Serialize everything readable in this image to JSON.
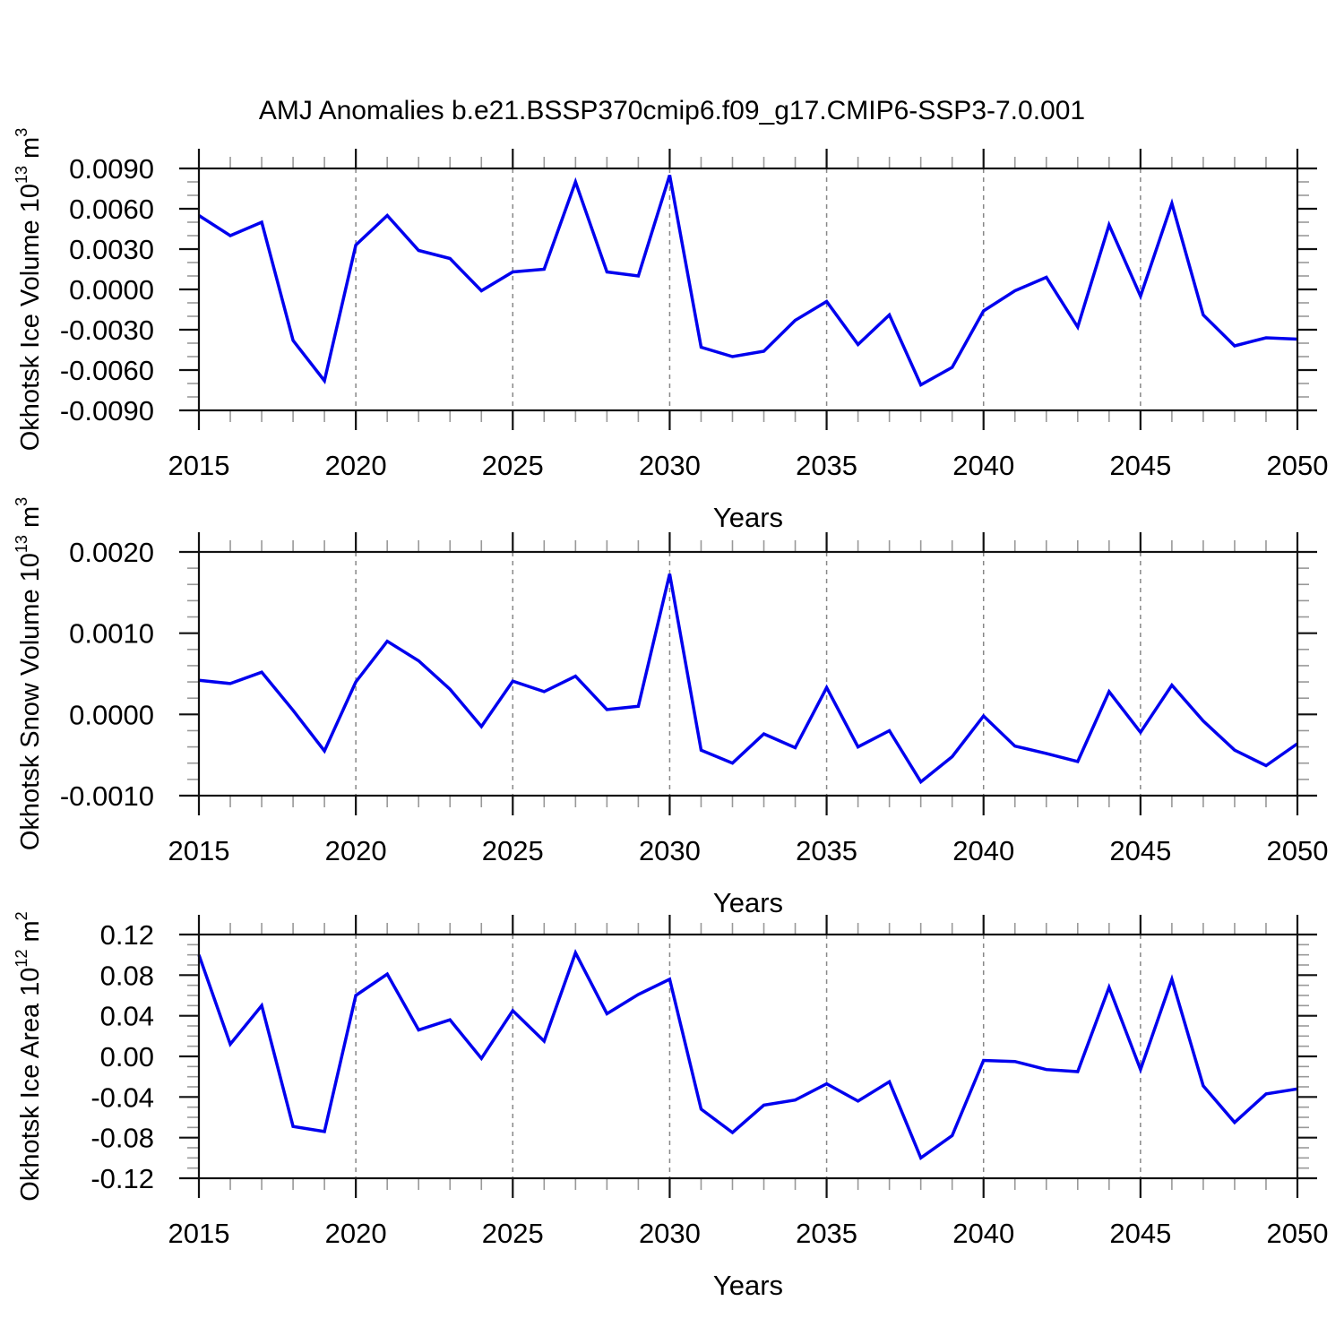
{
  "title": "AMJ Anomalies b.e21.BSSP370cmip6.f09_g17.CMIP6-SSP3-7.0.001",
  "style": {
    "line_color": "#0000EE",
    "frame_color": "#111111",
    "major_tick_color": "#111111",
    "minor_tick_color": "#999999",
    "grid_color": "#888888",
    "background": "#ffffff"
  },
  "chart_data": [
    {
      "type": "line",
      "panel": "okhotsk-ice-volume",
      "ylabel_base": "Okhotsk Ice Volume 10",
      "ylabel_exp": "13",
      "ylabel_unit": " m",
      "ylabel_unit_exp": "3",
      "xlabel": "Years",
      "x_start": 2015,
      "x_end": 2050,
      "x_step": 1,
      "ylim": [
        -0.009,
        0.009
      ],
      "ytick_minor_step": 0.001,
      "yticks": [
        {
          "v": 0.009,
          "label": "0.0090"
        },
        {
          "v": 0.006,
          "label": "0.0060"
        },
        {
          "v": 0.003,
          "label": "0.0030"
        },
        {
          "v": 0.0,
          "label": "0.0000"
        },
        {
          "v": -0.003,
          "label": "-0.0030"
        },
        {
          "v": -0.006,
          "label": "-0.0060"
        },
        {
          "v": -0.009,
          "label": "-0.0090"
        }
      ],
      "xticks": [
        {
          "v": 2015,
          "label": "2015",
          "grid": false
        },
        {
          "v": 2020,
          "label": "2020",
          "grid": true
        },
        {
          "v": 2025,
          "label": "2025",
          "grid": true
        },
        {
          "v": 2030,
          "label": "2030",
          "grid": true
        },
        {
          "v": 2035,
          "label": "2035",
          "grid": true
        },
        {
          "v": 2040,
          "label": "2040",
          "grid": true
        },
        {
          "v": 2045,
          "label": "2045",
          "grid": true
        },
        {
          "v": 2050,
          "label": "2050",
          "grid": false
        }
      ],
      "values": [
        0.0055,
        0.004,
        0.005,
        -0.0038,
        -0.0068,
        0.0033,
        0.0055,
        0.0029,
        0.0023,
        -0.0001,
        0.0013,
        0.0015,
        0.008,
        0.0013,
        0.001,
        0.0085,
        -0.0043,
        -0.005,
        -0.0046,
        -0.0023,
        -0.0009,
        -0.0041,
        -0.0019,
        -0.0071,
        -0.0058,
        -0.0016,
        -0.0001,
        0.0009,
        -0.0028,
        0.0048,
        -0.0005,
        0.0064,
        -0.0019,
        -0.0042,
        -0.0036,
        -0.0037
      ]
    },
    {
      "type": "line",
      "panel": "okhotsk-snow-volume",
      "ylabel_base": "Okhotsk Snow Volume 10",
      "ylabel_exp": "13",
      "ylabel_unit": " m",
      "ylabel_unit_exp": "3",
      "xlabel": "Years",
      "x_start": 2015,
      "x_end": 2050,
      "x_step": 1,
      "ylim": [
        -0.001,
        0.002
      ],
      "ytick_minor_step": 0.0002,
      "yticks": [
        {
          "v": 0.002,
          "label": "0.0020"
        },
        {
          "v": 0.001,
          "label": "0.0010"
        },
        {
          "v": 0.0,
          "label": "0.0000"
        },
        {
          "v": -0.001,
          "label": "-0.0010"
        }
      ],
      "xticks": [
        {
          "v": 2015,
          "label": "2015",
          "grid": false
        },
        {
          "v": 2020,
          "label": "2020",
          "grid": true
        },
        {
          "v": 2025,
          "label": "2025",
          "grid": true
        },
        {
          "v": 2030,
          "label": "2030",
          "grid": true
        },
        {
          "v": 2035,
          "label": "2035",
          "grid": true
        },
        {
          "v": 2040,
          "label": "2040",
          "grid": true
        },
        {
          "v": 2045,
          "label": "2045",
          "grid": true
        },
        {
          "v": 2050,
          "label": "2050",
          "grid": false
        }
      ],
      "values": [
        0.00042,
        0.00038,
        0.00052,
        5e-05,
        -0.00045,
        0.0004,
        0.0009,
        0.00066,
        0.00031,
        -0.00015,
        0.00041,
        0.00028,
        0.00047,
        6e-05,
        0.0001,
        0.00173,
        -0.00044,
        -0.0006,
        -0.00024,
        -0.00041,
        0.00033,
        -0.0004,
        -0.0002,
        -0.00083,
        -0.00052,
        -2e-05,
        -0.00039,
        -0.00048,
        -0.00058,
        0.00028,
        -0.00022,
        0.00036,
        -8e-05,
        -0.00044,
        -0.00063,
        -0.00036
      ]
    },
    {
      "type": "line",
      "panel": "okhotsk-ice-area",
      "ylabel_base": "Okhotsk Ice Area 10",
      "ylabel_exp": "12",
      "ylabel_unit": " m",
      "ylabel_unit_exp": "2",
      "xlabel": "Years",
      "x_start": 2015,
      "x_end": 2050,
      "x_step": 1,
      "ylim": [
        -0.12,
        0.12
      ],
      "ytick_minor_step": 0.01,
      "yticks": [
        {
          "v": 0.12,
          "label": "0.12"
        },
        {
          "v": 0.08,
          "label": "0.08"
        },
        {
          "v": 0.04,
          "label": "0.04"
        },
        {
          "v": 0.0,
          "label": "0.00"
        },
        {
          "v": -0.04,
          "label": "-0.04"
        },
        {
          "v": -0.08,
          "label": "-0.08"
        },
        {
          "v": -0.12,
          "label": "-0.12"
        }
      ],
      "xticks": [
        {
          "v": 2015,
          "label": "2015",
          "grid": false
        },
        {
          "v": 2020,
          "label": "2020",
          "grid": true
        },
        {
          "v": 2025,
          "label": "2025",
          "grid": true
        },
        {
          "v": 2030,
          "label": "2030",
          "grid": true
        },
        {
          "v": 2035,
          "label": "2035",
          "grid": true
        },
        {
          "v": 2040,
          "label": "2040",
          "grid": true
        },
        {
          "v": 2045,
          "label": "2045",
          "grid": true
        },
        {
          "v": 2050,
          "label": "2050",
          "grid": false
        }
      ],
      "values": [
        0.1,
        0.012,
        0.05,
        -0.069,
        -0.074,
        0.06,
        0.081,
        0.026,
        0.036,
        -0.002,
        0.045,
        0.015,
        0.102,
        0.042,
        0.061,
        0.076,
        -0.052,
        -0.075,
        -0.048,
        -0.043,
        -0.027,
        -0.044,
        -0.025,
        -0.1,
        -0.078,
        -0.004,
        -0.005,
        -0.013,
        -0.015,
        0.068,
        -0.013,
        0.076,
        -0.029,
        -0.065,
        -0.037,
        -0.032
      ]
    }
  ]
}
